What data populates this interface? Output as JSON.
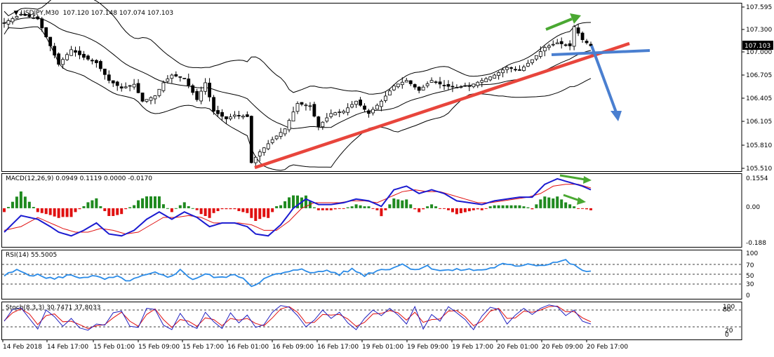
{
  "symbol_header": {
    "text": "USDJPY,M30  107.120 107.148 107.074 107.103",
    "current_price": "107.103"
  },
  "colors": {
    "bull_candle": "#ffffff",
    "bear_candle": "#000000",
    "bands": "#000000",
    "trendline": "#e8453c",
    "arrow_green": "#4aa832",
    "arrow_blue": "#4a7fd0",
    "macd_line": "#1a1ad0",
    "signal_line": "#e01010",
    "hist_pos": "#1f8a1f",
    "hist_neg": "#e01010",
    "rsi_line": "#2a8be8",
    "stoch_main": "#2020c0",
    "stoch_signal": "#e01010"
  },
  "price_axis": {
    "ticks": [
      "107.595",
      "107.300",
      "107.000",
      "106.705",
      "106.405",
      "106.105",
      "105.810",
      "105.510"
    ]
  },
  "macd": {
    "label": "MACD(12,26,9) 0.0949 0.1119 0.0000 -0.0170",
    "ticks": [
      "0.1554",
      "0.00",
      "-0.188"
    ]
  },
  "rsi": {
    "label": "RSI(14) 55.5005",
    "ticks": [
      "100",
      "70",
      "50",
      "30",
      "0"
    ]
  },
  "stoch": {
    "label": "Stoch(8,3,3) 30.7471 37.8033",
    "ticks": [
      "100",
      "80",
      "20",
      "0"
    ]
  },
  "time_axis": {
    "labels": [
      "14 Feb 2018",
      "14 Feb 17:00",
      "15 Feb 01:00",
      "15 Feb 09:00",
      "15 Feb 17:00",
      "16 Feb 01:00",
      "16 Feb 09:00",
      "16 Feb 17:00",
      "19 Feb 01:00",
      "19 Feb 09:00",
      "19 Feb 17:00",
      "20 Feb 01:00",
      "20 Feb 09:00",
      "20 Feb 17:00"
    ]
  },
  "chart_data": {
    "type": "line",
    "price": {
      "start_index": 0,
      "end_index": 140,
      "close_anchors": [
        [
          0,
          107.4
        ],
        [
          4,
          107.51
        ],
        [
          8,
          107.45
        ],
        [
          11,
          107.1
        ],
        [
          13,
          106.86
        ],
        [
          16,
          107.05
        ],
        [
          19,
          106.95
        ],
        [
          22,
          106.88
        ],
        [
          25,
          106.65
        ],
        [
          28,
          106.55
        ],
        [
          31,
          106.6
        ],
        [
          33,
          106.38
        ],
        [
          36,
          106.45
        ],
        [
          38,
          106.62
        ],
        [
          40,
          106.72
        ],
        [
          43,
          106.68
        ],
        [
          46,
          106.4
        ],
        [
          48,
          106.62
        ],
        [
          50,
          106.25
        ],
        [
          53,
          106.15
        ],
        [
          55,
          106.2
        ],
        [
          58,
          106.18
        ],
        [
          59,
          105.58
        ],
        [
          61,
          105.72
        ],
        [
          64,
          105.88
        ],
        [
          67,
          106.02
        ],
        [
          70,
          106.35
        ],
        [
          73,
          106.32
        ],
        [
          75,
          106.05
        ],
        [
          78,
          106.22
        ],
        [
          81,
          106.25
        ],
        [
          84,
          106.38
        ],
        [
          87,
          106.22
        ],
        [
          90,
          106.38
        ],
        [
          93,
          106.58
        ],
        [
          96,
          106.65
        ],
        [
          99,
          106.52
        ],
        [
          102,
          106.65
        ],
        [
          105,
          106.58
        ],
        [
          108,
          106.56
        ],
        [
          111,
          106.58
        ],
        [
          114,
          106.65
        ],
        [
          117,
          106.72
        ],
        [
          120,
          106.82
        ],
        [
          123,
          106.78
        ],
        [
          126,
          106.92
        ],
        [
          129,
          107.08
        ],
        [
          132,
          107.14
        ],
        [
          135,
          107.1
        ],
        [
          136,
          107.35
        ],
        [
          138,
          107.18
        ],
        [
          140,
          107.1
        ]
      ],
      "ylim": [
        105.47,
        107.66
      ]
    },
    "macd": {
      "ylim": [
        -0.21,
        0.19
      ],
      "macd_anchors": [
        [
          0,
          -0.13
        ],
        [
          4,
          -0.04
        ],
        [
          8,
          -0.06
        ],
        [
          11,
          -0.1
        ],
        [
          13,
          -0.13
        ],
        [
          16,
          -0.15
        ],
        [
          19,
          -0.12
        ],
        [
          22,
          -0.08
        ],
        [
          25,
          -0.14
        ],
        [
          28,
          -0.15
        ],
        [
          31,
          -0.12
        ],
        [
          34,
          -0.06
        ],
        [
          37,
          -0.02
        ],
        [
          40,
          -0.06
        ],
        [
          43,
          -0.02
        ],
        [
          46,
          -0.05
        ],
        [
          49,
          -0.1
        ],
        [
          52,
          -0.08
        ],
        [
          55,
          -0.08
        ],
        [
          58,
          -0.1
        ],
        [
          60,
          -0.14
        ],
        [
          63,
          -0.15
        ],
        [
          66,
          -0.09
        ],
        [
          69,
          0.0
        ],
        [
          72,
          0.05
        ],
        [
          75,
          0.02
        ],
        [
          78,
          0.02
        ],
        [
          81,
          0.03
        ],
        [
          84,
          0.05
        ],
        [
          87,
          0.04
        ],
        [
          90,
          0.01
        ],
        [
          93,
          0.1
        ],
        [
          96,
          0.12
        ],
        [
          99,
          0.08
        ],
        [
          102,
          0.1
        ],
        [
          105,
          0.08
        ],
        [
          108,
          0.04
        ],
        [
          111,
          0.03
        ],
        [
          114,
          0.02
        ],
        [
          117,
          0.04
        ],
        [
          120,
          0.05
        ],
        [
          123,
          0.06
        ],
        [
          126,
          0.06
        ],
        [
          129,
          0.13
        ],
        [
          132,
          0.16
        ],
        [
          135,
          0.14
        ],
        [
          138,
          0.12
        ],
        [
          140,
          0.1
        ]
      ],
      "signal_anchors": [
        [
          0,
          -0.12
        ],
        [
          4,
          -0.1
        ],
        [
          8,
          -0.05
        ],
        [
          11,
          -0.08
        ],
        [
          14,
          -0.11
        ],
        [
          17,
          -0.13
        ],
        [
          20,
          -0.13
        ],
        [
          23,
          -0.11
        ],
        [
          26,
          -0.12
        ],
        [
          29,
          -0.14
        ],
        [
          32,
          -0.13
        ],
        [
          35,
          -0.09
        ],
        [
          38,
          -0.05
        ],
        [
          41,
          -0.05
        ],
        [
          44,
          -0.04
        ],
        [
          47,
          -0.05
        ],
        [
          50,
          -0.08
        ],
        [
          53,
          -0.08
        ],
        [
          56,
          -0.08
        ],
        [
          59,
          -0.09
        ],
        [
          62,
          -0.12
        ],
        [
          65,
          -0.12
        ],
        [
          68,
          -0.07
        ],
        [
          71,
          0.0
        ],
        [
          74,
          0.03
        ],
        [
          77,
          0.03
        ],
        [
          80,
          0.03
        ],
        [
          83,
          0.04
        ],
        [
          86,
          0.04
        ],
        [
          89,
          0.03
        ],
        [
          92,
          0.06
        ],
        [
          95,
          0.09
        ],
        [
          98,
          0.1
        ],
        [
          101,
          0.09
        ],
        [
          104,
          0.09
        ],
        [
          107,
          0.07
        ],
        [
          110,
          0.05
        ],
        [
          113,
          0.03
        ],
        [
          116,
          0.03
        ],
        [
          119,
          0.04
        ],
        [
          122,
          0.05
        ],
        [
          125,
          0.06
        ],
        [
          128,
          0.08
        ],
        [
          131,
          0.12
        ],
        [
          134,
          0.13
        ],
        [
          137,
          0.13
        ],
        [
          140,
          0.11
        ]
      ]
    },
    "rsi": {
      "ylim": [
        0,
        100
      ],
      "levels": [
        70,
        50,
        30
      ],
      "anchors": [
        [
          0,
          47
        ],
        [
          3,
          58
        ],
        [
          6,
          50
        ],
        [
          9,
          46
        ],
        [
          12,
          40
        ],
        [
          15,
          48
        ],
        [
          18,
          44
        ],
        [
          21,
          46
        ],
        [
          24,
          40
        ],
        [
          27,
          44
        ],
        [
          30,
          36
        ],
        [
          33,
          46
        ],
        [
          36,
          52
        ],
        [
          39,
          44
        ],
        [
          42,
          58
        ],
        [
          45,
          40
        ],
        [
          48,
          50
        ],
        [
          51,
          42
        ],
        [
          54,
          48
        ],
        [
          57,
          44
        ],
        [
          59,
          26
        ],
        [
          62,
          40
        ],
        [
          65,
          50
        ],
        [
          68,
          54
        ],
        [
          71,
          62
        ],
        [
          74,
          52
        ],
        [
          77,
          58
        ],
        [
          80,
          50
        ],
        [
          83,
          60
        ],
        [
          86,
          48
        ],
        [
          89,
          58
        ],
        [
          92,
          62
        ],
        [
          95,
          70
        ],
        [
          98,
          60
        ],
        [
          101,
          66
        ],
        [
          104,
          58
        ],
        [
          107,
          58
        ],
        [
          110,
          60
        ],
        [
          113,
          58
        ],
        [
          116,
          62
        ],
        [
          119,
          70
        ],
        [
          122,
          66
        ],
        [
          125,
          72
        ],
        [
          128,
          68
        ],
        [
          131,
          74
        ],
        [
          134,
          78
        ],
        [
          137,
          62
        ],
        [
          139,
          56
        ],
        [
          140,
          55
        ]
      ]
    },
    "stoch": {
      "ylim": [
        0,
        100
      ],
      "levels": [
        80,
        20
      ],
      "main_anchors": [
        [
          0,
          40
        ],
        [
          2,
          82
        ],
        [
          4,
          88
        ],
        [
          6,
          50
        ],
        [
          8,
          12
        ],
        [
          10,
          80
        ],
        [
          12,
          56
        ],
        [
          14,
          22
        ],
        [
          16,
          50
        ],
        [
          18,
          16
        ],
        [
          20,
          8
        ],
        [
          22,
          30
        ],
        [
          24,
          26
        ],
        [
          26,
          70
        ],
        [
          28,
          76
        ],
        [
          30,
          22
        ],
        [
          32,
          18
        ],
        [
          34,
          86
        ],
        [
          36,
          82
        ],
        [
          38,
          26
        ],
        [
          40,
          10
        ],
        [
          42,
          68
        ],
        [
          44,
          28
        ],
        [
          46,
          14
        ],
        [
          48,
          72
        ],
        [
          50,
          38
        ],
        [
          52,
          14
        ],
        [
          54,
          70
        ],
        [
          56,
          34
        ],
        [
          58,
          62
        ],
        [
          60,
          18
        ],
        [
          62,
          28
        ],
        [
          64,
          72
        ],
        [
          66,
          96
        ],
        [
          68,
          90
        ],
        [
          70,
          60
        ],
        [
          72,
          20
        ],
        [
          74,
          44
        ],
        [
          76,
          80
        ],
        [
          78,
          50
        ],
        [
          80,
          72
        ],
        [
          82,
          34
        ],
        [
          84,
          10
        ],
        [
          86,
          50
        ],
        [
          88,
          80
        ],
        [
          90,
          60
        ],
        [
          92,
          86
        ],
        [
          94,
          62
        ],
        [
          96,
          30
        ],
        [
          98,
          92
        ],
        [
          100,
          12
        ],
        [
          102,
          64
        ],
        [
          104,
          40
        ],
        [
          106,
          92
        ],
        [
          108,
          70
        ],
        [
          110,
          46
        ],
        [
          112,
          10
        ],
        [
          114,
          58
        ],
        [
          116,
          90
        ],
        [
          118,
          82
        ],
        [
          120,
          30
        ],
        [
          122,
          62
        ],
        [
          124,
          86
        ],
        [
          126,
          64
        ],
        [
          128,
          86
        ],
        [
          130,
          98
        ],
        [
          132,
          92
        ],
        [
          134,
          60
        ],
        [
          136,
          80
        ],
        [
          138,
          40
        ],
        [
          140,
          30
        ]
      ],
      "signal_anchors": [
        [
          0,
          42
        ],
        [
          2,
          70
        ],
        [
          4,
          84
        ],
        [
          6,
          66
        ],
        [
          8,
          28
        ],
        [
          10,
          60
        ],
        [
          12,
          66
        ],
        [
          14,
          38
        ],
        [
          16,
          40
        ],
        [
          18,
          28
        ],
        [
          20,
          14
        ],
        [
          22,
          24
        ],
        [
          24,
          28
        ],
        [
          26,
          52
        ],
        [
          28,
          72
        ],
        [
          30,
          40
        ],
        [
          32,
          22
        ],
        [
          34,
          64
        ],
        [
          36,
          84
        ],
        [
          38,
          46
        ],
        [
          40,
          18
        ],
        [
          42,
          46
        ],
        [
          44,
          40
        ],
        [
          46,
          22
        ],
        [
          48,
          52
        ],
        [
          50,
          46
        ],
        [
          52,
          24
        ],
        [
          54,
          50
        ],
        [
          56,
          44
        ],
        [
          58,
          50
        ],
        [
          60,
          32
        ],
        [
          62,
          24
        ],
        [
          64,
          52
        ],
        [
          66,
          84
        ],
        [
          68,
          92
        ],
        [
          70,
          72
        ],
        [
          72,
          34
        ],
        [
          74,
          36
        ],
        [
          76,
          64
        ],
        [
          78,
          62
        ],
        [
          80,
          64
        ],
        [
          82,
          48
        ],
        [
          84,
          22
        ],
        [
          86,
          36
        ],
        [
          88,
          66
        ],
        [
          90,
          68
        ],
        [
          92,
          78
        ],
        [
          94,
          70
        ],
        [
          96,
          44
        ],
        [
          98,
          72
        ],
        [
          100,
          36
        ],
        [
          102,
          46
        ],
        [
          104,
          48
        ],
        [
          106,
          76
        ],
        [
          108,
          78
        ],
        [
          110,
          56
        ],
        [
          112,
          24
        ],
        [
          114,
          40
        ],
        [
          116,
          76
        ],
        [
          118,
          86
        ],
        [
          120,
          50
        ],
        [
          122,
          52
        ],
        [
          124,
          76
        ],
        [
          126,
          72
        ],
        [
          128,
          80
        ],
        [
          130,
          92
        ],
        [
          132,
          94
        ],
        [
          134,
          74
        ],
        [
          136,
          74
        ],
        [
          138,
          52
        ],
        [
          140,
          38
        ]
      ]
    }
  }
}
